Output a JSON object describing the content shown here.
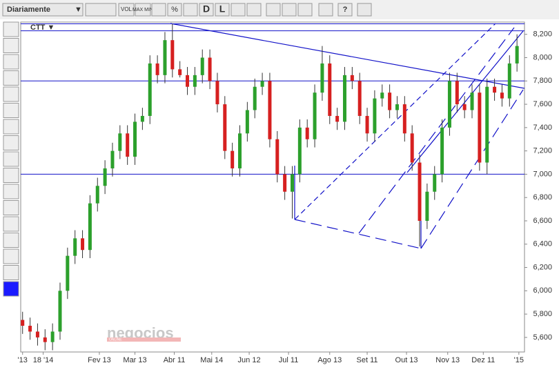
{
  "toolbar": {
    "period": "Diariamente",
    "vol": "VOL",
    "maxmin": "MAX MIN",
    "percent": "%",
    "d": "D",
    "l": "L"
  },
  "symbol": "CTT ▼",
  "watermark": {
    "brand": "negocios",
    "sub": "ONLINE"
  },
  "chart_data": {
    "type": "candlestick",
    "x": [
      0,
      4,
      8,
      12,
      16,
      20,
      24,
      28,
      32,
      36,
      40,
      44,
      48,
      52,
      56,
      60,
      64,
      68,
      72,
      76,
      80,
      84,
      88,
      92,
      96,
      100,
      104,
      108,
      112,
      116,
      120,
      124,
      128,
      132,
      136,
      140,
      144,
      148,
      152,
      156,
      160,
      164,
      168,
      172,
      176,
      180,
      184,
      188,
      192,
      196,
      200,
      204,
      208,
      212,
      216,
      220,
      224,
      228,
      232,
      236,
      240,
      244,
      248,
      252,
      256,
      260,
      264
    ],
    "open": [
      5750,
      5700,
      5650,
      5600,
      5560,
      5650,
      6000,
      6300,
      6450,
      6350,
      6750,
      6900,
      7050,
      7200,
      7350,
      7150,
      7450,
      7500,
      7950,
      7850,
      8150,
      7900,
      7850,
      7750,
      7850,
      8000,
      7800,
      7600,
      7200,
      7050,
      7350,
      7550,
      7750,
      7800,
      7300,
      7000,
      6850,
      7000,
      7400,
      7300,
      7700,
      7950,
      7500,
      7450,
      7850,
      7800,
      7500,
      7350,
      7650,
      7700,
      7550,
      7600,
      7350,
      7100,
      6600,
      6850,
      7000,
      7400,
      7800,
      7600,
      7550,
      7700,
      7100,
      7750,
      7700,
      7650,
      7950
    ],
    "high": [
      5820,
      5770,
      5720,
      5670,
      5720,
      6070,
      6370,
      6520,
      6520,
      6820,
      6970,
      7120,
      7270,
      7420,
      7420,
      7520,
      7570,
      8020,
      8020,
      8220,
      8290,
      7970,
      7920,
      7920,
      8070,
      8070,
      7870,
      7670,
      7270,
      7420,
      7620,
      7820,
      7870,
      7870,
      7370,
      7070,
      7070,
      7470,
      7470,
      7770,
      8100,
      8020,
      7570,
      7920,
      7920,
      7870,
      7570,
      7720,
      7770,
      7770,
      7670,
      7670,
      7420,
      7170,
      6920,
      7070,
      7470,
      7870,
      7870,
      7670,
      7770,
      7770,
      7820,
      7820,
      7770,
      8020,
      8200
    ],
    "low": [
      5630,
      5580,
      5530,
      5490,
      5490,
      5580,
      5930,
      6230,
      6280,
      6280,
      6680,
      6830,
      6980,
      7130,
      7080,
      7080,
      7380,
      7430,
      7780,
      7780,
      7830,
      7830,
      7680,
      7680,
      7780,
      7730,
      7530,
      7130,
      6980,
      6980,
      7280,
      7480,
      7680,
      7230,
      6930,
      6780,
      6620,
      6930,
      7230,
      7230,
      7630,
      7430,
      7380,
      7380,
      7730,
      7430,
      7280,
      7280,
      7580,
      7480,
      7480,
      7280,
      7030,
      6380,
      6530,
      6780,
      6930,
      7330,
      7530,
      7480,
      7480,
      7030,
      7000,
      7630,
      7580,
      7580,
      7880
    ],
    "close": [
      5700,
      5650,
      5600,
      5560,
      5650,
      6000,
      6300,
      6450,
      6350,
      6750,
      6900,
      7050,
      7200,
      7350,
      7150,
      7450,
      7500,
      7950,
      7850,
      8150,
      7900,
      7850,
      7750,
      7850,
      8000,
      7800,
      7600,
      7200,
      7050,
      7350,
      7550,
      7750,
      7800,
      7300,
      7000,
      6850,
      7000,
      7400,
      7300,
      7700,
      7950,
      7500,
      7450,
      7850,
      7800,
      7500,
      7350,
      7650,
      7700,
      7550,
      7600,
      7350,
      7100,
      6600,
      6850,
      7000,
      7400,
      7800,
      7600,
      7550,
      7700,
      7100,
      7750,
      7700,
      7650,
      7950,
      8100
    ],
    "up_color": "#2ca02c",
    "down_color": "#d62020",
    "xlim": [
      -1,
      268
    ],
    "xticks": [
      {
        "value": 0,
        "label": "'13"
      },
      {
        "value": 11,
        "label": "18 '14"
      },
      {
        "value": 41,
        "label": "Fev 13"
      },
      {
        "value": 60,
        "label": "Mar 13"
      },
      {
        "value": 81,
        "label": "Abr 11"
      },
      {
        "value": 101,
        "label": "Mai 14"
      },
      {
        "value": 121,
        "label": "Jun 12"
      },
      {
        "value": 142,
        "label": "Jul 11"
      },
      {
        "value": 164,
        "label": "Ago 13"
      },
      {
        "value": 184,
        "label": "Set 11"
      },
      {
        "value": 205,
        "label": "Out 13"
      },
      {
        "value": 227,
        "label": "Nov 13"
      },
      {
        "value": 246,
        "label": "Dez 11"
      },
      {
        "value": 265,
        "label": "'15"
      }
    ],
    "ylim": [
      5475,
      8305
    ],
    "yticks": [
      {
        "value": 5600,
        "label": "5,600"
      },
      {
        "value": 5800,
        "label": "5,800"
      },
      {
        "value": 6000,
        "label": "6,000"
      },
      {
        "value": 6200,
        "label": "6,200"
      },
      {
        "value": 6400,
        "label": "6,400"
      },
      {
        "value": 6600,
        "label": "6,600"
      },
      {
        "value": 6800,
        "label": "6,800"
      },
      {
        "value": 7000,
        "label": "7,000"
      },
      {
        "value": 7200,
        "label": "7,200"
      },
      {
        "value": 7400,
        "label": "7,400"
      },
      {
        "value": 7600,
        "label": "7,600"
      },
      {
        "value": 7800,
        "label": "7,800"
      },
      {
        "value": 8000,
        "label": "8,000"
      },
      {
        "value": 8200,
        "label": "8,200"
      }
    ],
    "hlines": [
      8290,
      8230,
      7800,
      7000
    ],
    "line_color": "#1010c8"
  }
}
